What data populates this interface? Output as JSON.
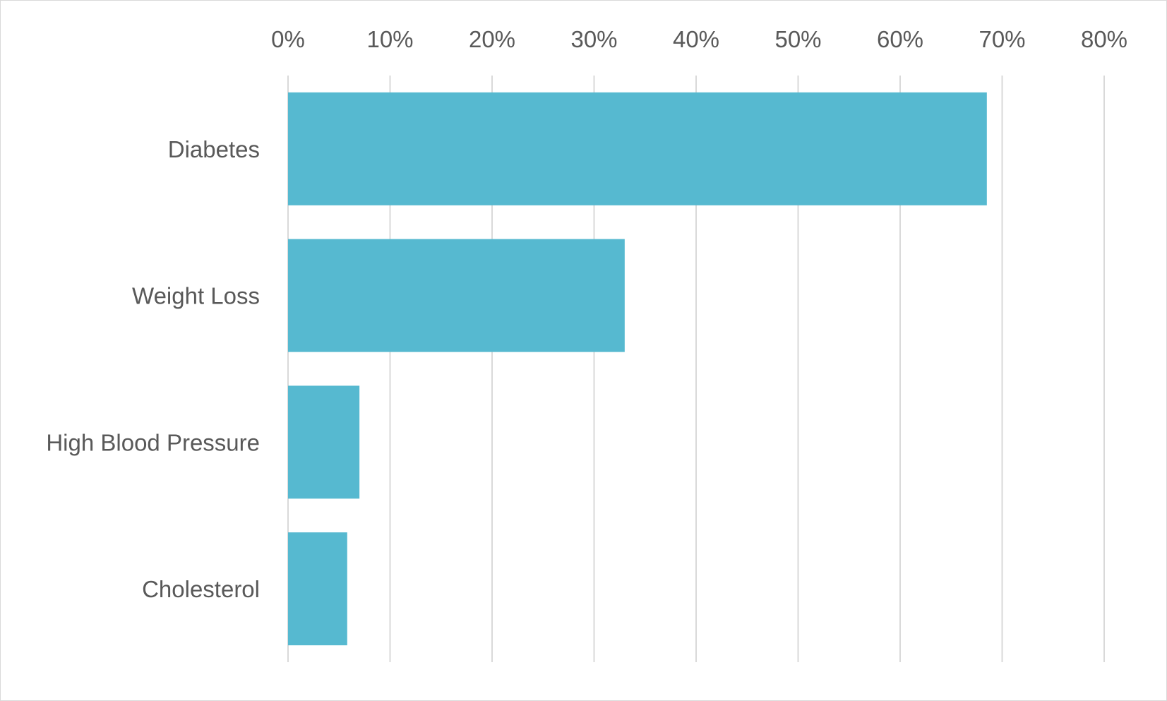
{
  "chart_data": {
    "type": "bar",
    "orientation": "horizontal",
    "title": "",
    "xlabel": "",
    "ylabel": "",
    "categories": [
      "Diabetes",
      "Weight Loss",
      "High Blood Pressure",
      "Cholesterol"
    ],
    "values": [
      68.5,
      33,
      7,
      5.8
    ],
    "value_format": "percent",
    "xlim": [
      0,
      80
    ],
    "x_ticks": [
      0,
      10,
      20,
      30,
      40,
      50,
      60,
      70,
      80
    ],
    "x_tick_labels": [
      "0%",
      "10%",
      "20%",
      "30%",
      "40%",
      "50%",
      "60%",
      "70%",
      "80%"
    ],
    "x_axis_position": "top",
    "grid": true,
    "legend": "none",
    "bar_color": "#56B9D0",
    "grid_color": "#D9D9D9",
    "text_color": "#595959"
  }
}
